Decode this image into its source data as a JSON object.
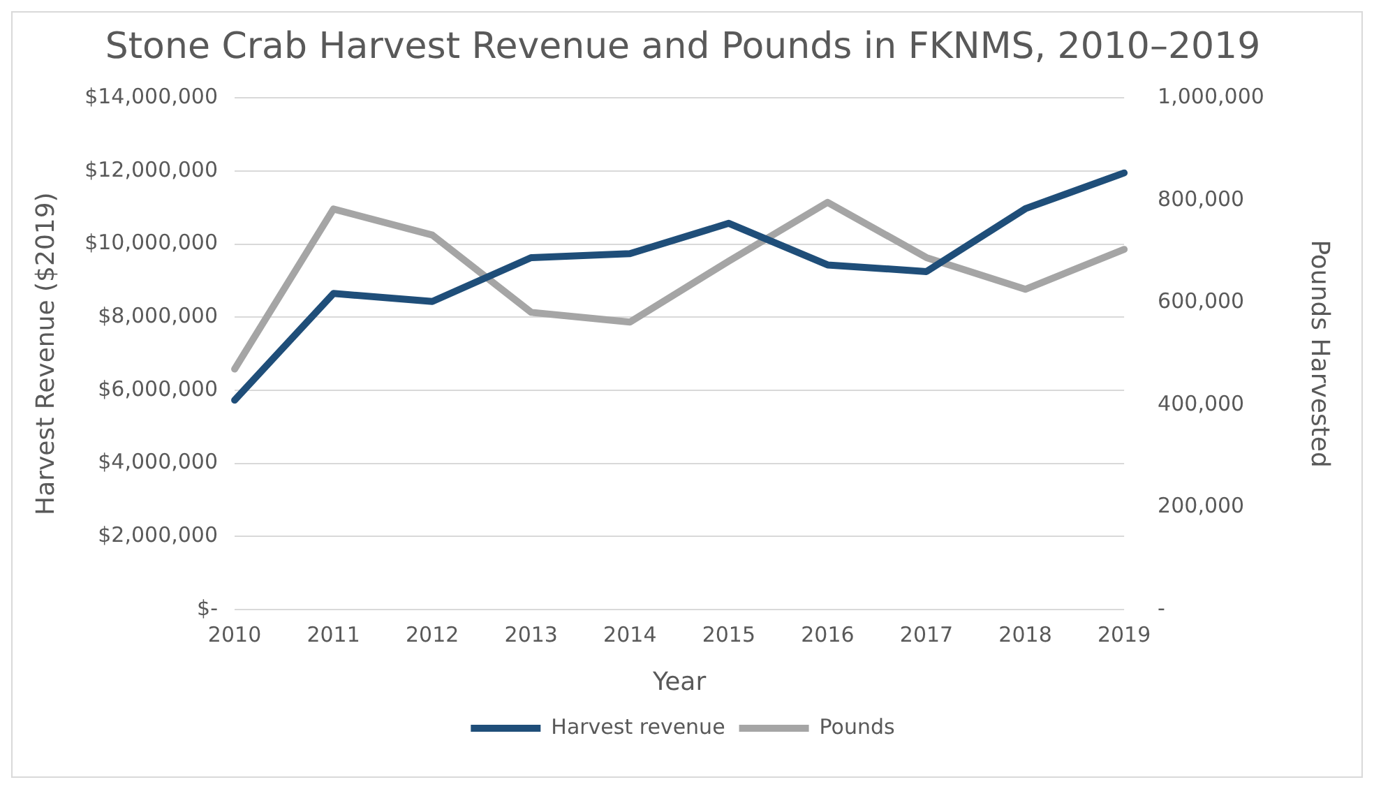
{
  "chart_data": {
    "type": "line",
    "title": "Stone Crab Harvest Revenue and Pounds in FKNMS, 2010–2019",
    "xlabel": "Year",
    "ylabel": "Harvest Revenue ($2019)",
    "y2label": "Pounds Harvested",
    "categories": [
      "2010",
      "2011",
      "2012",
      "2013",
      "2014",
      "2015",
      "2016",
      "2017",
      "2018",
      "2019"
    ],
    "series": [
      {
        "name": "Harvest revenue",
        "color": "#1f4e79",
        "values": [
          5730000,
          8650000,
          8430000,
          9630000,
          9740000,
          10570000,
          9430000,
          9250000,
          10970000,
          11950000
        ]
      },
      {
        "name": "Pounds",
        "color": "#a5a5a5",
        "axis": "y2",
        "values": [
          470000,
          783000,
          732000,
          581000,
          562000,
          681000,
          796000,
          688000,
          626000,
          704000
        ]
      }
    ],
    "ylim": [
      0,
      14000000
    ],
    "yticks": [
      {
        "value": 0,
        "label": "$-"
      },
      {
        "value": 2000000,
        "label": "$2,000,000"
      },
      {
        "value": 4000000,
        "label": "$4,000,000"
      },
      {
        "value": 6000000,
        "label": "$6,000,000"
      },
      {
        "value": 8000000,
        "label": "$8,000,000"
      },
      {
        "value": 10000000,
        "label": "$10,000,000"
      },
      {
        "value": 12000000,
        "label": "$12,000,000"
      },
      {
        "value": 14000000,
        "label": "$14,000,000"
      }
    ],
    "y2lim": [
      0,
      1000000
    ],
    "y2ticks": [
      {
        "value": 0,
        "label": "-"
      },
      {
        "value": 200000,
        "label": "200,000"
      },
      {
        "value": 400000,
        "label": "400,000"
      },
      {
        "value": 600000,
        "label": "600,000"
      },
      {
        "value": 800000,
        "label": "800,000"
      },
      {
        "value": 1000000,
        "label": "1,000,000"
      }
    ],
    "grid": "y",
    "legend": "bottom",
    "marker": "none",
    "line_style": "solid"
  }
}
